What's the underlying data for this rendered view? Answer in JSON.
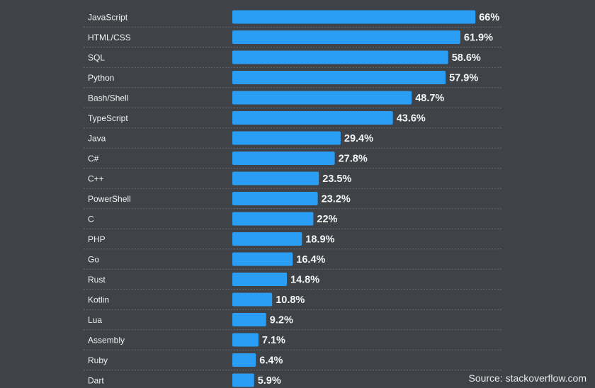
{
  "chart_data": {
    "type": "bar",
    "orientation": "horizontal",
    "categories": [
      "JavaScript",
      "HTML/CSS",
      "SQL",
      "Python",
      "Bash/Shell",
      "TypeScript",
      "Java",
      "C#",
      "C++",
      "PowerShell",
      "C",
      "PHP",
      "Go",
      "Rust",
      "Kotlin",
      "Lua",
      "Assembly",
      "Ruby",
      "Dart"
    ],
    "values": [
      66,
      61.9,
      58.6,
      57.9,
      48.7,
      43.6,
      29.4,
      27.8,
      23.5,
      23.2,
      22,
      18.9,
      16.4,
      14.8,
      10.8,
      9.2,
      7.1,
      6.4,
      5.9
    ],
    "value_labels": [
      "66%",
      "61.9%",
      "58.6%",
      "57.9%",
      "48.7%",
      "43.6%",
      "29.4%",
      "27.8%",
      "23.5%",
      "23.2%",
      "22%",
      "18.9%",
      "16.4%",
      "14.8%",
      "10.8%",
      "9.2%",
      "7.1%",
      "6.4%",
      "5.9%"
    ],
    "bar_color": "#2a9df4",
    "grid": false,
    "legend": "none"
  },
  "source": "Source: stackoverflow.com"
}
